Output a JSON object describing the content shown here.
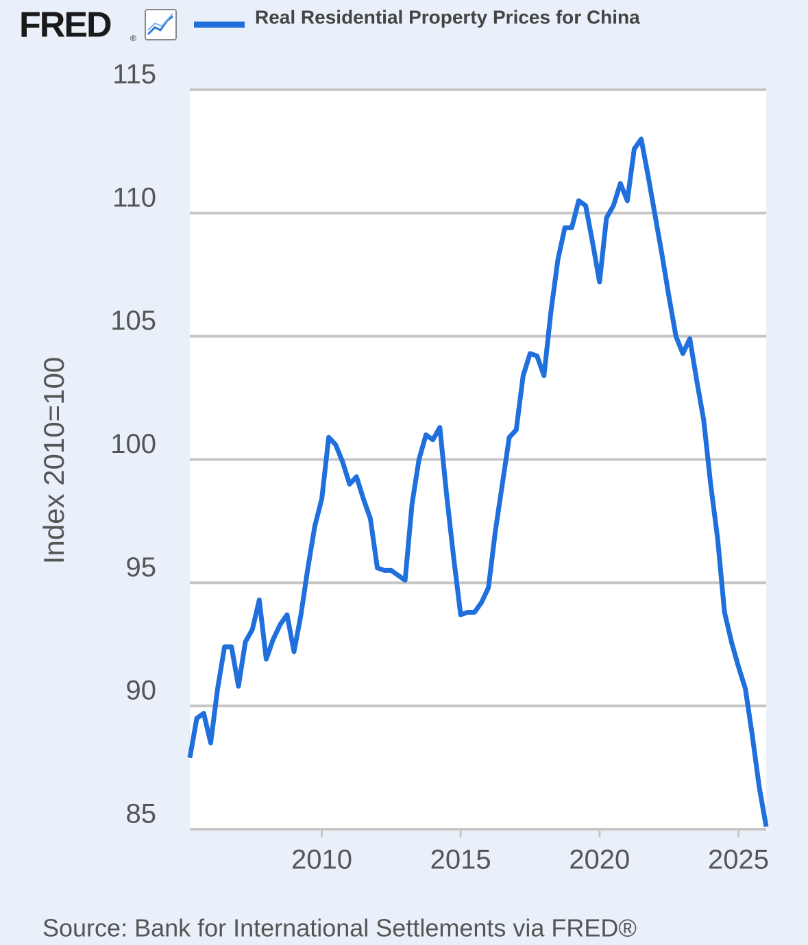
{
  "logo": "FRED",
  "logo_mark": "®",
  "chart_data": {
    "type": "line",
    "y_label": "Index 2010=100",
    "source": "Source: Bank for International Settlements via FRED®",
    "x": [
      2005.25,
      2005.5,
      2005.75,
      2006,
      2006.25,
      2006.5,
      2006.75,
      2007,
      2007.25,
      2007.5,
      2007.75,
      2008,
      2008.25,
      2008.5,
      2008.75,
      2009,
      2009.25,
      2009.5,
      2009.75,
      2010,
      2010.25,
      2010.5,
      2010.75,
      2011,
      2011.25,
      2011.5,
      2011.75,
      2012,
      2012.25,
      2012.5,
      2012.75,
      2013,
      2013.25,
      2013.5,
      2013.75,
      2014,
      2014.25,
      2014.5,
      2014.75,
      2015,
      2015.25,
      2015.5,
      2015.75,
      2016,
      2016.25,
      2016.5,
      2016.75,
      2017,
      2017.25,
      2017.5,
      2017.75,
      2018,
      2018.25,
      2018.5,
      2018.75,
      2019,
      2019.25,
      2019.5,
      2019.75,
      2020,
      2020.25,
      2020.5,
      2020.75,
      2021,
      2021.25,
      2021.5,
      2021.75,
      2022,
      2022.25,
      2022.5,
      2022.75,
      2023,
      2023.25,
      2023.5,
      2023.75,
      2024,
      2024.25,
      2024.5,
      2024.75,
      2025,
      2025.25,
      2025.5,
      2025.75,
      2026
    ],
    "series": [
      {
        "name": "Real Residential Property Prices for China",
        "color": "#1f6fdc",
        "values": [
          87.9,
          89.5,
          89.7,
          88.5,
          90.7,
          92.4,
          92.4,
          90.8,
          92.6,
          93.1,
          94.3,
          91.9,
          92.7,
          93.3,
          93.7,
          92.2,
          93.7,
          95.6,
          97.3,
          98.4,
          100.9,
          100.6,
          99.9,
          99.0,
          99.3,
          98.4,
          97.6,
          95.6,
          95.5,
          95.5,
          95.3,
          95.1,
          98.2,
          100.0,
          101.0,
          100.8,
          101.3,
          98.5,
          96.0,
          93.7,
          93.8,
          93.8,
          94.2,
          94.8,
          97.1,
          99.0,
          100.9,
          101.2,
          103.4,
          104.3,
          104.2,
          103.4,
          106.0,
          108.1,
          109.4,
          109.4,
          110.5,
          110.3,
          108.8,
          107.2,
          109.8,
          110.3,
          111.2,
          110.5,
          112.6,
          113.0,
          111.5,
          109.9,
          108.3,
          106.6,
          105.0,
          104.3,
          104.9,
          103.2,
          101.6,
          99.0,
          96.8,
          93.8,
          92.6,
          91.6,
          90.7,
          88.8,
          86.7,
          85.1
        ]
      }
    ],
    "xlim": [
      2005.25,
      2026
    ],
    "xticks": [
      2010,
      2015,
      2020,
      2025
    ],
    "ylim": [
      85,
      115
    ],
    "yticks": [
      85,
      90,
      95,
      100,
      105,
      110,
      115
    ],
    "grid": true
  }
}
